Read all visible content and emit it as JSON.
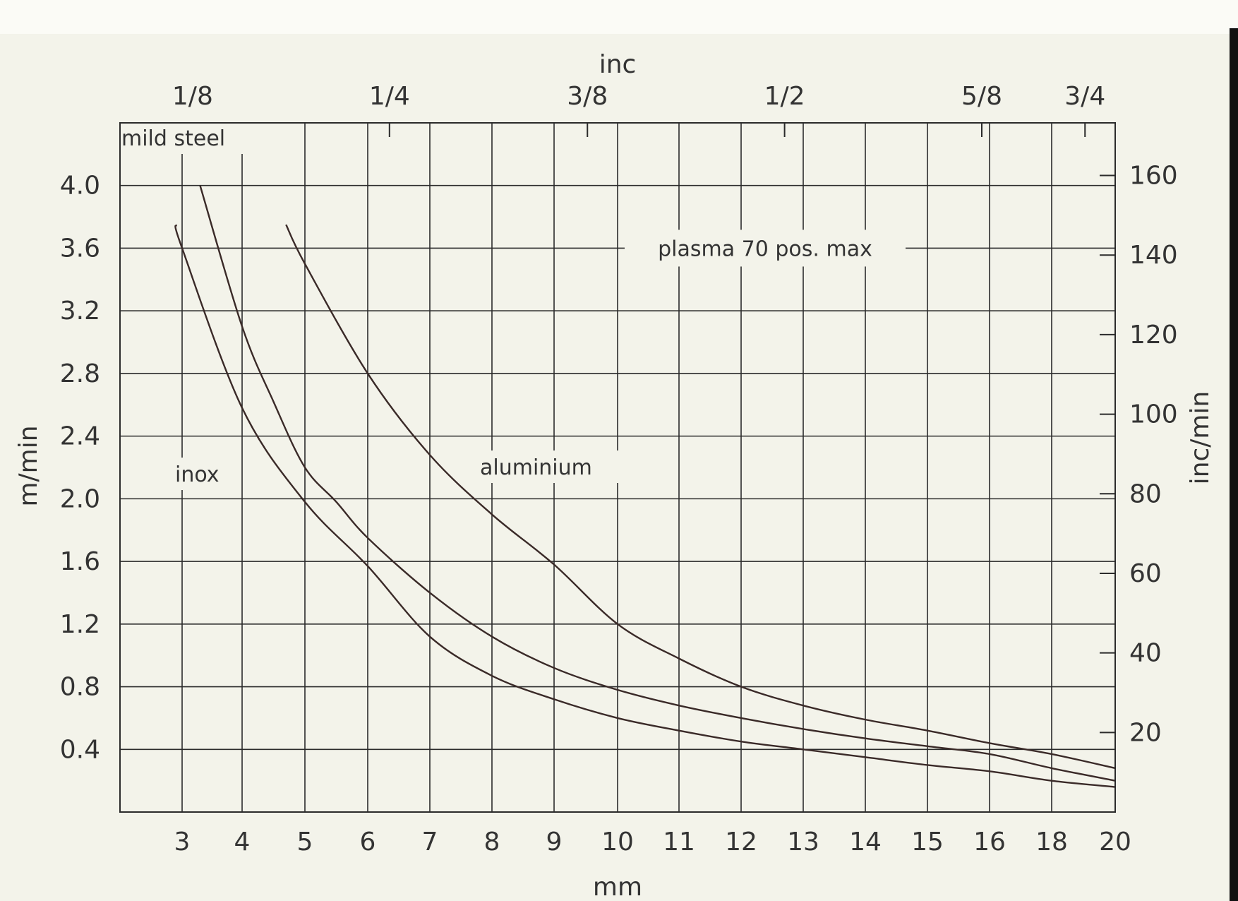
{
  "chart_data": {
    "type": "line",
    "title": "",
    "xlabel": "mm",
    "ylabel": "m/min",
    "secondary_xlabel": "inc",
    "secondary_ylabel": "inc/min",
    "x_ticks": [
      "3",
      "4",
      "5",
      "6",
      "7",
      "8",
      "9",
      "10",
      "11",
      "12",
      "13",
      "14",
      "15",
      "16",
      "18",
      "20"
    ],
    "x_top_ticks": [
      "1/8",
      "1/4",
      "3/8",
      "1/2",
      "5/8",
      "3/4"
    ],
    "y_ticks": [
      "0.4",
      "0.8",
      "1.2",
      "1.6",
      "2.0",
      "2.4",
      "2.8",
      "3.2",
      "3.6",
      "4.0"
    ],
    "y_right_ticks": [
      "20",
      "40",
      "60",
      "80",
      "100",
      "120",
      "140",
      "160"
    ],
    "ylim": [
      0,
      4.4
    ],
    "grid": true,
    "series": [
      {
        "name": "mild steel",
        "color": "#3a2a28",
        "x": [
          3.3,
          4,
          4.5,
          5,
          5.5,
          6,
          7,
          8,
          9,
          10,
          11,
          12,
          13,
          14,
          15,
          16,
          18,
          20
        ],
        "y": [
          4.0,
          3.1,
          2.62,
          2.2,
          1.98,
          1.75,
          1.4,
          1.12,
          0.92,
          0.78,
          0.68,
          0.6,
          0.53,
          0.47,
          0.42,
          0.37,
          0.28,
          0.2
        ]
      },
      {
        "name": "inox",
        "color": "#3a2a28",
        "x": [
          2.9,
          3,
          4,
          5,
          6,
          7,
          8,
          9,
          10,
          11,
          12,
          13,
          14,
          15,
          16,
          18,
          20
        ],
        "y": [
          3.75,
          3.6,
          2.58,
          1.98,
          1.57,
          1.12,
          0.87,
          0.72,
          0.6,
          0.52,
          0.45,
          0.4,
          0.35,
          0.3,
          0.26,
          0.2,
          0.16
        ]
      },
      {
        "name": "aluminium",
        "color": "#3a2a28",
        "x": [
          4.7,
          5,
          6,
          7,
          8,
          9,
          10,
          11,
          12,
          13,
          14,
          15,
          16,
          18,
          20
        ],
        "y": [
          3.75,
          3.5,
          2.8,
          2.28,
          1.9,
          1.58,
          1.2,
          0.98,
          0.8,
          0.68,
          0.59,
          0.52,
          0.44,
          0.37,
          0.28
        ]
      }
    ],
    "annotations": {
      "plasma_label": "plasma 70 pos. max",
      "plasma_level": 3.6
    }
  }
}
